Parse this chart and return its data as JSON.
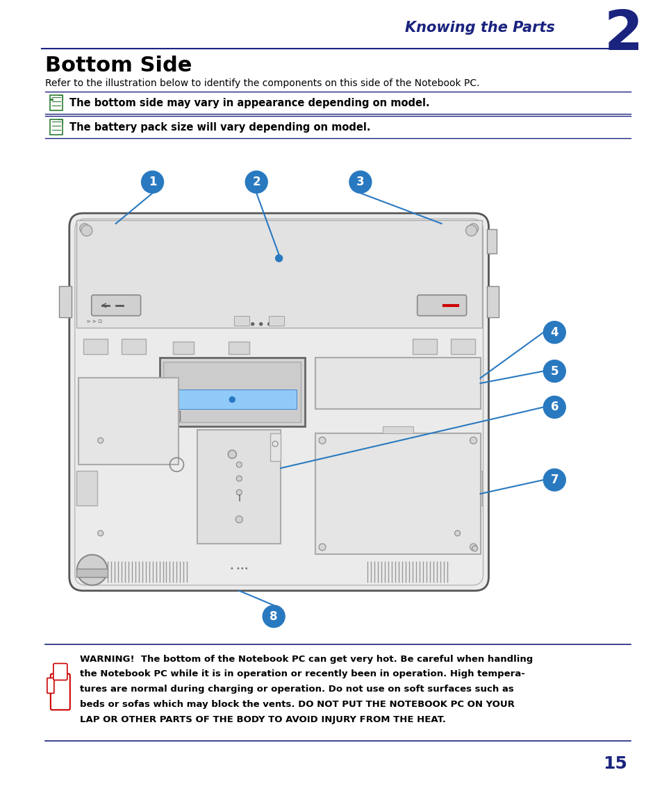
{
  "title_section": "Knowing the Parts",
  "chapter_num": "2",
  "section_title": "Bottom Side",
  "subtitle": "Refer to the illustration below to identify the components on this side of the Notebook PC.",
  "note1": "The bottom side may vary in appearance depending on model.",
  "note2": "The battery pack size will vary depending on model.",
  "warning_line1": "WARNING!  The bottom of the Notebook PC can get very hot. Be careful when handling",
  "warning_line2": "the Notebook PC while it is in operation or recently been in operation. High tempera-",
  "warning_line3": "tures are normal during charging or operation. Do not use on soft surfaces such as",
  "warning_line4": "beds or sofas which may block the vents. DO NOT PUT THE NOTEBOOK PC ON YOUR",
  "warning_line5": "LAP OR OTHER PARTS OF THE BODY TO AVOID INJURY FROM THE HEAT.",
  "page_num": "15",
  "header_color": "#1a237e",
  "accent_color": "#2979c0",
  "dark_navy": "#1a237e",
  "line_color": "#1a237e",
  "body_fill": "#e8e8e8",
  "body_edge": "#555555",
  "cover_fill": "#e0e0e0",
  "bg_color": "#ffffff",
  "note_icon_color": "#2e7d32",
  "red_color": "#cc0000"
}
